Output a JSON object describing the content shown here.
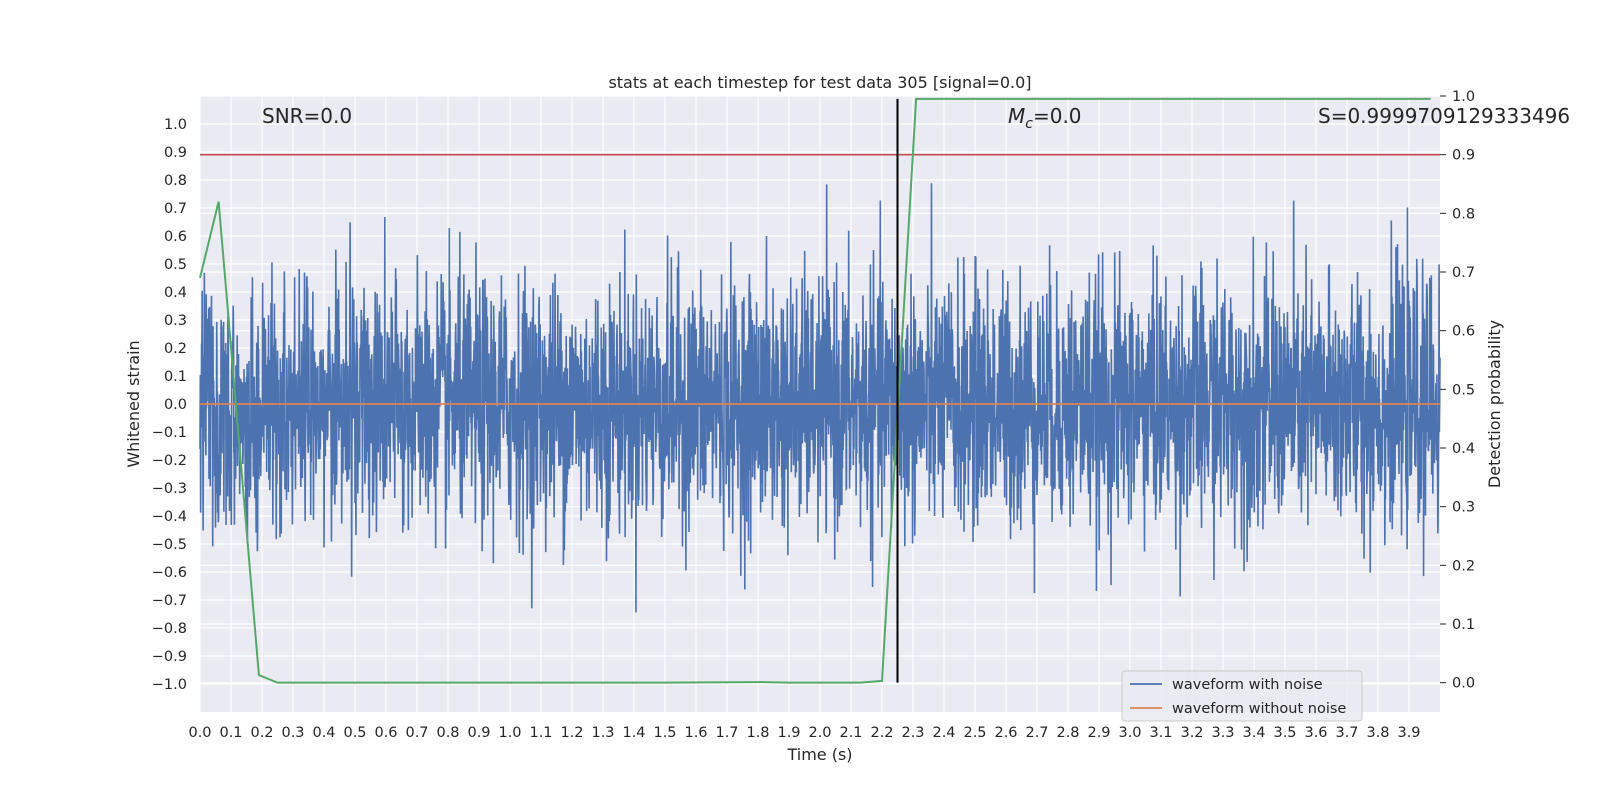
{
  "chart_data": {
    "type": "line",
    "title": "stats at each timestep for test data 305 [signal=0.0]",
    "xlabel": "Time (s)",
    "ylabel": "Whitened strain",
    "y2label": "Detection probability",
    "xlim": [
      0.0,
      4.0
    ],
    "ylim": [
      -1.1,
      1.1
    ],
    "y2lim": [
      -0.05,
      1.0
    ],
    "x_ticks": [
      "0.0",
      "0.1",
      "0.2",
      "0.3",
      "0.4",
      "0.5",
      "0.6",
      "0.7",
      "0.8",
      "0.9",
      "1.0",
      "1.1",
      "1.2",
      "1.3",
      "1.4",
      "1.5",
      "1.6",
      "1.7",
      "1.8",
      "1.9",
      "2.0",
      "2.1",
      "2.2",
      "2.3",
      "2.4",
      "2.5",
      "2.6",
      "2.7",
      "2.8",
      "2.9",
      "3.0",
      "3.1",
      "3.2",
      "3.3",
      "3.4",
      "3.5",
      "3.6",
      "3.7",
      "3.8",
      "3.9"
    ],
    "y_ticks": [
      "1.0",
      "0.9",
      "0.8",
      "0.7",
      "0.6",
      "0.5",
      "0.4",
      "0.3",
      "0.2",
      "0.1",
      "0.0",
      "−0.1",
      "−0.2",
      "−0.3",
      "−0.4",
      "−0.5",
      "−0.6",
      "−0.7",
      "−0.8",
      "−0.9",
      "−1.0"
    ],
    "y2_ticks": [
      "1.0",
      "0.9",
      "0.8",
      "0.7",
      "0.6",
      "0.5",
      "0.4",
      "0.3",
      "0.2",
      "0.1",
      "0.0"
    ],
    "grid": true,
    "legend_position": "lower-right",
    "annotations": {
      "snr": "SNR=0.0",
      "mc_symbol": "M",
      "mc_sub": "c",
      "mc_value": "=0.0",
      "s_value": "S=0.9999709129333496"
    },
    "threshold": {
      "y2": 0.9,
      "color": "#c44e52"
    },
    "vline": {
      "x": 2.25,
      "color": "#000000"
    },
    "series": [
      {
        "name": "waveform with noise",
        "color": "#4c72b0",
        "amplitude": 0.4,
        "x_range": [
          0.0,
          4.0
        ]
      },
      {
        "name": "waveform without noise",
        "color": "#dd8452",
        "values_constant": 0.0
      },
      {
        "color": "#55a868",
        "axis": "right",
        "x": [
          0.0,
          0.06,
          0.19,
          0.25,
          1.0,
          1.5,
          1.8,
          1.9,
          2.0,
          2.13,
          2.2,
          2.31,
          2.4,
          3.0,
          3.5,
          3.97
        ],
        "values": [
          0.69,
          0.82,
          0.013,
          0.0,
          0.0,
          0.0,
          0.001,
          0.0,
          0.0,
          0.0,
          0.003,
          0.995,
          0.995,
          0.995,
          0.995,
          0.995
        ]
      }
    ]
  }
}
